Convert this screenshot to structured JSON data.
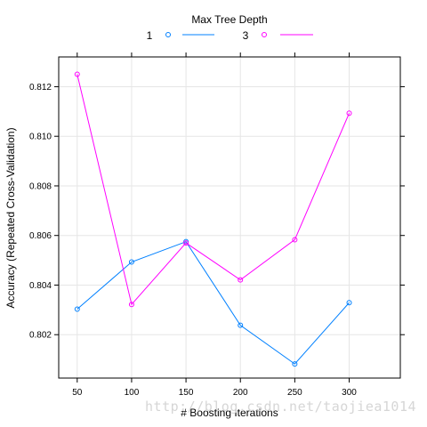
{
  "chart_data": {
    "type": "line",
    "xlabel": "# Boosting Iterations",
    "ylabel": "Accuracy (Repeated Cross-Validation)",
    "legend_title": "Max Tree Depth",
    "legend_position": "top",
    "grid": true,
    "x": [
      50,
      100,
      150,
      200,
      250,
      300
    ],
    "xlim": [
      33,
      347
    ],
    "ylim": [
      0.80025,
      0.8132
    ],
    "xticks": [
      50,
      100,
      150,
      200,
      250,
      300
    ],
    "yticks": [
      0.802,
      0.804,
      0.806,
      0.808,
      0.81,
      0.812
    ],
    "ytick_labels": [
      "0.802",
      "0.804",
      "0.806",
      "0.808",
      "0.810",
      "0.812"
    ],
    "series": [
      {
        "name": "1",
        "color": "#0080ff",
        "marker": "circle",
        "values": [
          0.80303,
          0.80493,
          0.80575,
          0.80238,
          0.80082,
          0.80329
        ]
      },
      {
        "name": "3",
        "color": "#ff00ff",
        "marker": "circle",
        "values": [
          0.8125,
          0.80322,
          0.8057,
          0.80421,
          0.80583,
          0.81093
        ]
      }
    ]
  },
  "watermark": "http://blog.csdn.net/taojiea1014"
}
